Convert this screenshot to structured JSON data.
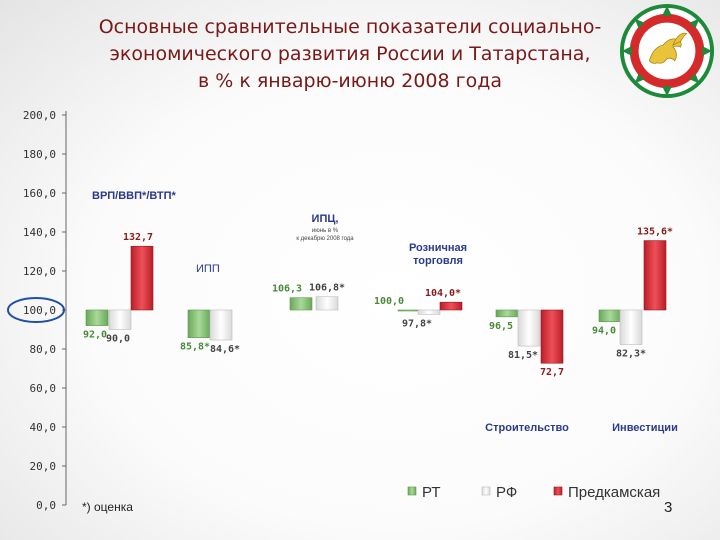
{
  "title_lines": [
    "Основные сравнительные показатели социально-",
    "экономического развития России и Татарстана,",
    "в % к январю-июню 2008 года"
  ],
  "footnote": "*) оценка",
  "page_number": "3",
  "colors": {
    "rt": "#8cc47c",
    "rf": "#f2f2f2",
    "predkamskaya": "#d7303a",
    "highlight_circle": "#1f4ea8"
  },
  "chart_data": {
    "type": "bar",
    "baseline": 100,
    "ylim": [
      0,
      200
    ],
    "yticks": [
      "0,0",
      "20,0",
      "40,0",
      "60,0",
      "80,0",
      "100,0",
      "120,0",
      "140,0",
      "160,0",
      "180,0",
      "200,0"
    ],
    "yticks_values": [
      0,
      20,
      40,
      60,
      80,
      100,
      120,
      140,
      160,
      180,
      200
    ],
    "highlighted_tick": "100,0",
    "legend": [
      {
        "key": "rt",
        "label": "РТ"
      },
      {
        "key": "rf",
        "label": "РФ"
      },
      {
        "key": "predkamskaya",
        "label": "Предкамская"
      }
    ],
    "groups": [
      {
        "label": "ВРП/ВВП*/ВТП*",
        "sublabel": "",
        "bars": [
          {
            "series": "rt",
            "value": 92.0,
            "label": "92,0"
          },
          {
            "series": "rf",
            "value": 90.0,
            "label": "90,0"
          },
          {
            "series": "predkamskaya",
            "value": 132.7,
            "label": "132,7"
          }
        ]
      },
      {
        "label": "ИПП",
        "sublabel": "",
        "bars": [
          {
            "series": "rt",
            "value": 85.8,
            "label": "85,8*"
          },
          {
            "series": "rf",
            "value": 84.6,
            "label": "84,6*"
          }
        ]
      },
      {
        "label": "ИПЦ,",
        "sublabel": "июнь в % к декабрю 2008 года",
        "bars": [
          {
            "series": "rt",
            "value": 106.3,
            "label": "106,3"
          },
          {
            "series": "rf",
            "value": 106.8,
            "label": "106,8*"
          }
        ]
      },
      {
        "label": "Розничная торговля",
        "sublabel": "",
        "bars": [
          {
            "series": "rt",
            "value": 100.0,
            "label": "100,0"
          },
          {
            "series": "rf",
            "value": 97.8,
            "label": "97,8*"
          },
          {
            "series": "predkamskaya",
            "value": 104.0,
            "label": "104,0*"
          }
        ]
      },
      {
        "label": "Строительство",
        "sublabel": "",
        "bars": [
          {
            "series": "rt",
            "value": 96.5,
            "label": "96,5"
          },
          {
            "series": "rf",
            "value": 81.5,
            "label": "81,5*"
          },
          {
            "series": "predkamskaya",
            "value": 72.7,
            "label": "72,7"
          }
        ]
      },
      {
        "label": "Инвестиции",
        "sublabel": "",
        "bars": [
          {
            "series": "rt",
            "value": 94.0,
            "label": "94,0"
          },
          {
            "series": "rf",
            "value": 82.3,
            "label": "82,3*"
          },
          {
            "series": "predkamskaya",
            "value": 135.6,
            "label": "135,6*"
          }
        ]
      }
    ]
  }
}
